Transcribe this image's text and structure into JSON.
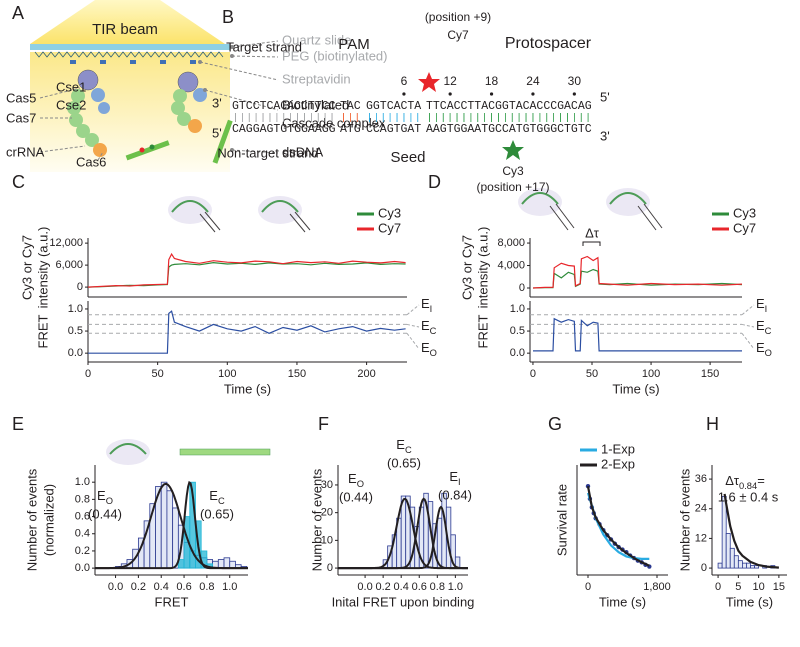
{
  "diagram_a": {
    "panel": "A",
    "beam": "TIR beam",
    "right_labels": [
      "Quartz slide",
      "PEG (biotinylated)",
      "Streptavidin",
      "Biotinylated",
      "Cascade complex",
      "dsDNA"
    ],
    "protein_labels": [
      "Cas5",
      "Cse1",
      "Cas7",
      "Cse2",
      "crRNA",
      "Cas6"
    ]
  },
  "diagram_b": {
    "panel": "B",
    "target_strand": "Target strand",
    "non_target_strand": "Non-target strand",
    "pam": "PAM",
    "protospacer": "Protospacer",
    "seed": "Seed",
    "cy7": "Cy7",
    "cy7_position": "(position +9)",
    "cy3": "Cy3",
    "cy3_position": "(position +17)",
    "positions": [
      6,
      12,
      18,
      24,
      30
    ],
    "top_ends": [
      "3'",
      "5'"
    ],
    "bottom_ends": [
      "5'",
      "3'"
    ],
    "top_sequence": [
      "GTCCTCACACCTTCC",
      "TAC",
      "GGTCACTA",
      "TTCACCTTACGGTACACCCGACAG"
    ],
    "bottom_sequence": [
      "CAGGAGTGTGGAAGG",
      "ATG",
      "CCAGTGAT",
      "AAGTGGAATGCCATGTGGGCTGTC"
    ]
  },
  "chart_data": [
    {
      "type": "line",
      "panel": "C",
      "ylabel": [
        "Cy3 or Cy7",
        "intensity (a.u.)"
      ],
      "x": [
        0,
        10,
        20,
        30,
        40,
        50,
        57,
        58,
        60,
        62,
        70,
        80,
        90,
        100,
        110,
        120,
        130,
        140,
        150,
        160,
        170,
        180,
        190,
        200,
        210,
        220,
        228
      ],
      "xlim": [
        0,
        229
      ],
      "ylim": [
        -2700,
        13400
      ],
      "yticks": [
        0,
        {
          "value": 6000,
          "label": "6,000"
        },
        {
          "value": 12000,
          "label": "12,000"
        }
      ],
      "series": [
        {
          "name": "Cy3",
          "color": "#2e8b3a",
          "values": [
            0,
            100,
            300,
            500,
            400,
            600,
            700,
            5500,
            6000,
            6200,
            6400,
            6100,
            6700,
            6300,
            6500,
            6200,
            6600,
            6300,
            6400,
            6100,
            6500,
            6200,
            6300,
            6600,
            6200,
            6400,
            6300
          ]
        },
        {
          "name": "Cy7",
          "color": "#e8262b",
          "values": [
            0,
            200,
            400,
            300,
            600,
            700,
            800,
            7500,
            9000,
            7800,
            7000,
            6500,
            7200,
            6800,
            6600,
            7100,
            6900,
            6400,
            7000,
            6700,
            6900,
            6500,
            7100,
            6800,
            6600,
            7000,
            6700
          ]
        }
      ]
    },
    {
      "type": "line",
      "ylabel": [
        "FRET"
      ],
      "xlabel": "Time (s)",
      "x": [
        0,
        10,
        20,
        30,
        40,
        50,
        57,
        58,
        60,
        62,
        70,
        80,
        90,
        100,
        110,
        120,
        130,
        140,
        150,
        160,
        170,
        180,
        190,
        200,
        210,
        220,
        228
      ],
      "xlim": [
        0,
        229
      ],
      "ylim": [
        -0.2,
        1.18
      ],
      "xticks": [
        0,
        50,
        100,
        150,
        200
      ],
      "yticks": [
        {
          "value": 0,
          "label": "0.0"
        },
        0.5,
        {
          "value": 1,
          "label": "1.0"
        }
      ],
      "hlines": [
        {
          "value": 0.87,
          "main": "E",
          "sub": "I"
        },
        {
          "value": 0.65,
          "main": "E",
          "sub": "C"
        },
        {
          "value": 0.45,
          "main": "E",
          "sub": "O"
        }
      ],
      "series": [
        {
          "color": "#2b4ea2",
          "values": [
            0,
            0,
            0,
            0,
            0,
            0,
            0,
            0.9,
            0.95,
            0.7,
            0.6,
            0.5,
            0.65,
            0.55,
            0.5,
            0.6,
            0.45,
            0.58,
            0.52,
            0.62,
            0.48,
            0.55,
            0.6,
            0.5,
            0.56,
            0.52,
            0.55
          ]
        }
      ]
    },
    {
      "type": "line",
      "panel": "D",
      "ylabel": [
        "Cy3 or Cy7",
        "intensity (a.u.)"
      ],
      "annotation": "Δτ",
      "x": [
        0,
        10,
        17,
        18,
        24,
        30,
        35,
        36,
        40,
        41,
        46,
        51,
        55,
        56,
        65,
        80,
        100,
        120,
        140,
        160,
        177
      ],
      "xlim": [
        -2.5,
        177
      ],
      "ylim": [
        -1600,
        8900
      ],
      "yticks": [
        0,
        {
          "value": 4000,
          "label": "4,000"
        },
        {
          "value": 8000,
          "label": "8,000"
        }
      ],
      "series": [
        {
          "name": "Cy3",
          "color": "#2e8b3a",
          "values": [
            0,
            50,
            80,
            2600,
            1800,
            2800,
            2400,
            300,
            700,
            3000,
            2800,
            3300,
            3000,
            700,
            600,
            800,
            500,
            700,
            600,
            800,
            600
          ]
        },
        {
          "name": "Cy7",
          "color": "#e8262b",
          "values": [
            0,
            100,
            120,
            3600,
            4400,
            4000,
            3900,
            400,
            800,
            5200,
            5600,
            4900,
            5400,
            800,
            700,
            500,
            800,
            600,
            700,
            500,
            700
          ]
        }
      ]
    },
    {
      "type": "line",
      "ylabel": [
        "FRET"
      ],
      "xlabel": "Time (s)",
      "x": [
        0,
        10,
        17,
        18,
        24,
        30,
        35,
        36,
        40,
        41,
        46,
        51,
        55,
        56,
        65,
        80,
        100,
        120,
        140,
        160,
        177
      ],
      "xlim": [
        -2.5,
        177
      ],
      "ylim": [
        -0.2,
        1.18
      ],
      "xticks": [
        0,
        50,
        100,
        150
      ],
      "yticks": [
        {
          "value": 0,
          "label": "0.0"
        },
        0.5,
        {
          "value": 1,
          "label": "1.0"
        }
      ],
      "hlines": [
        {
          "value": 0.87,
          "main": "E",
          "sub": "I"
        },
        {
          "value": 0.65,
          "main": "E",
          "sub": "C"
        },
        {
          "value": 0.45,
          "main": "E",
          "sub": "O"
        }
      ],
      "series": [
        {
          "color": "#2b4ea2",
          "values": [
            0.05,
            0.05,
            0.05,
            0.78,
            0.7,
            0.76,
            0.72,
            0.05,
            0.05,
            0.74,
            0.62,
            0.7,
            0.68,
            0.05,
            0.05,
            0.05,
            0.05,
            0.05,
            0.05,
            0.05,
            0.05
          ]
        }
      ]
    },
    {
      "type": "histogram",
      "panel": "E",
      "ylabel": [
        "Number of events",
        "(normalized)"
      ],
      "xlabel": "FRET",
      "xlim": [
        -0.18,
        1.16
      ],
      "ylim": [
        -0.08,
        1.2
      ],
      "xticks": [
        {
          "value": 0,
          "label": "0.0"
        },
        0.2,
        0.4,
        0.6,
        0.8,
        {
          "value": 1,
          "label": "1.0"
        }
      ],
      "yticks": [
        {
          "value": 0,
          "label": "0.0"
        },
        0.2,
        0.4,
        0.6,
        0.8,
        {
          "value": 1,
          "label": "1.0"
        }
      ],
      "bins": [
        0,
        0.05,
        0.1,
        0.15,
        0.2,
        0.25,
        0.3,
        0.35,
        0.4,
        0.45,
        0.5,
        0.55,
        0.6,
        0.65,
        0.7,
        0.75,
        0.8,
        0.85,
        0.9,
        0.95,
        1,
        1.05,
        1.1,
        1.15,
        1.2
      ],
      "series": [
        {
          "color": "#2b3990",
          "values": [
            0.02,
            0.05,
            0.1,
            0.22,
            0.35,
            0.55,
            0.75,
            0.95,
            1,
            0.9,
            0.7,
            0.5,
            0.3,
            0.2,
            0.15,
            0.12,
            0.1,
            0.08,
            0.1,
            0.12,
            0.08,
            0.04,
            0.02,
            0
          ]
        },
        {
          "color": "#1fb6d6",
          "values": [
            0,
            0,
            0,
            0,
            0,
            0,
            0,
            0,
            0,
            0,
            0,
            0.1,
            0.6,
            1,
            0.55,
            0.2,
            0.05,
            0,
            0,
            0,
            0,
            0,
            0,
            0
          ]
        }
      ],
      "fits": [
        {
          "mean": 0.44,
          "sd": 0.13,
          "amplitude": 0.98
        },
        {
          "mean": 0.65,
          "sd": 0.045,
          "amplitude": 1
        }
      ],
      "peaks": [
        {
          "main": "E",
          "sub": "O",
          "value_text": "(0.44)"
        },
        {
          "main": "E",
          "sub": "C",
          "value_text": "(0.65)"
        }
      ]
    },
    {
      "type": "histogram",
      "panel": "F",
      "ylabel": [
        "Number of events"
      ],
      "xlabel": "Inital FRET upon binding",
      "xlim": [
        -0.3,
        1.14
      ],
      "ylim": [
        -2.5,
        37.2
      ],
      "xticks": [
        {
          "value": 0,
          "label": "0.0"
        },
        0.2,
        0.4,
        0.6,
        0.8,
        {
          "value": 1,
          "label": "1.0"
        }
      ],
      "yticks": [
        0,
        10,
        20,
        30
      ],
      "bins": [
        0.2,
        0.25,
        0.3,
        0.35,
        0.4,
        0.45,
        0.5,
        0.55,
        0.6,
        0.65,
        0.7,
        0.75,
        0.8,
        0.85,
        0.9,
        0.95,
        1,
        1.05
      ],
      "series": [
        {
          "color": "#2b3990",
          "values": [
            3,
            8,
            12,
            18,
            26,
            26,
            22,
            15,
            22,
            27,
            24,
            16,
            18,
            27,
            22,
            12,
            4
          ]
        }
      ],
      "fits": [
        {
          "mean": 0.44,
          "sd": 0.09,
          "amplitude": 25
        },
        {
          "mean": 0.65,
          "sd": 0.07,
          "amplitude": 25
        },
        {
          "mean": 0.84,
          "sd": 0.06,
          "amplitude": 22
        }
      ],
      "peaks": [
        {
          "main": "E",
          "sub": "O",
          "value_text": "(0.44)"
        },
        {
          "main": "E",
          "sub": "C",
          "value_text": "(0.65)"
        },
        {
          "main": "E",
          "sub": "I",
          "value_text": "(0.84)"
        }
      ]
    },
    {
      "type": "scatter",
      "panel": "G",
      "ylabel": [
        "Survival rate"
      ],
      "xlabel": "Time (s)",
      "xlim": [
        -287,
        2087
      ],
      "ylim": [
        -0.05,
        1.25
      ],
      "xticks": [
        0,
        {
          "value": 1800,
          "label": "1,800"
        }
      ],
      "x": [
        0,
        50,
        100,
        150,
        200,
        300,
        400,
        500,
        600,
        700,
        800,
        900,
        1000,
        1100,
        1200,
        1300,
        1400,
        1500,
        1600
      ],
      "values": [
        1,
        0.85,
        0.75,
        0.68,
        0.62,
        0.55,
        0.48,
        0.42,
        0.37,
        0.32,
        0.28,
        0.25,
        0.22,
        0.18,
        0.15,
        0.12,
        0.1,
        0.07,
        0.05
      ],
      "color": "#2b3990",
      "curves": [
        {
          "name": "1-Exp",
          "color": "#29abe2",
          "x": [
            0,
            200,
            400,
            600,
            800,
            1000,
            1200,
            1400,
            1600
          ],
          "values": [
            0.92,
            0.62,
            0.43,
            0.3,
            0.22,
            0.17,
            0.15,
            0.14,
            0.14
          ]
        },
        {
          "name": "2-Exp",
          "color": "#231f20",
          "x": [
            0,
            100,
            200,
            400,
            600,
            800,
            1000,
            1200,
            1400,
            1600
          ],
          "values": [
            1,
            0.76,
            0.63,
            0.48,
            0.37,
            0.28,
            0.21,
            0.15,
            0.1,
            0.06
          ]
        }
      ]
    },
    {
      "type": "histogram",
      "panel": "H",
      "ylabel": [
        "Number of events"
      ],
      "xlabel": "Time (s)",
      "xlim": [
        -1.5,
        17
      ],
      "ylim": [
        -2.8,
        41.7
      ],
      "xticks": [
        0,
        5,
        10,
        15
      ],
      "yticks": [
        0,
        12,
        24,
        36
      ],
      "bins": [
        0,
        1,
        2,
        3,
        4,
        5,
        6,
        7,
        8,
        9,
        10,
        11,
        12,
        13,
        14,
        15
      ],
      "series": [
        {
          "color": "#2b3990",
          "values": [
            2,
            29,
            14,
            8,
            5,
            3,
            2,
            2,
            1,
            1,
            0,
            1,
            0,
            1,
            0
          ]
        }
      ],
      "curves": [
        {
          "color": "#231f20",
          "x": [
            1.6,
            2,
            3,
            4,
            5,
            6,
            8,
            10,
            12,
            15
          ],
          "values": [
            30,
            26,
            17,
            11,
            7,
            5,
            2.5,
            1.2,
            0.6,
            0.2
          ]
        }
      ],
      "annotation": {
        "main": "Δτ",
        "sub": "0.84",
        "rest": "=",
        "line2": "1.6 ± 0.4 s"
      }
    }
  ]
}
